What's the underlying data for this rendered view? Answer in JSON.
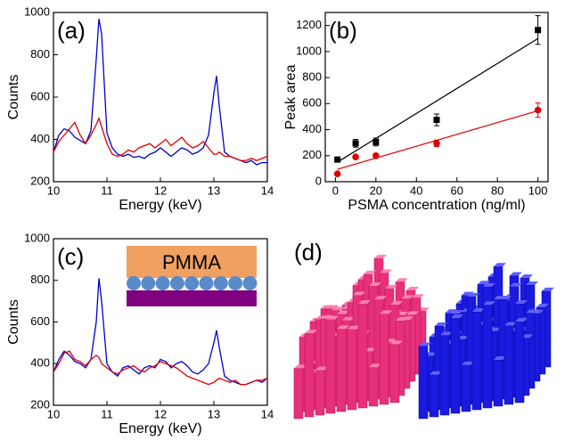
{
  "chart_data": [
    {
      "type": "line",
      "panel_label": "(a)",
      "x_label": "Energy (keV)",
      "y_label": "Counts",
      "xlim": [
        10,
        14
      ],
      "xticks": [
        10,
        11,
        12,
        13,
        14
      ],
      "ylim": [
        200,
        1000
      ],
      "yticks": [
        200,
        400,
        600,
        800,
        1000
      ],
      "x": [
        10,
        10.1,
        10.2,
        10.3,
        10.4,
        10.5,
        10.6,
        10.7,
        10.8,
        10.85,
        10.9,
        11.0,
        11.1,
        11.2,
        11.3,
        11.4,
        11.5,
        11.6,
        11.7,
        11.8,
        11.9,
        12.0,
        12.1,
        12.2,
        12.3,
        12.4,
        12.5,
        12.6,
        12.7,
        12.8,
        12.9,
        13.0,
        13.05,
        13.1,
        13.2,
        13.3,
        13.4,
        13.5,
        13.6,
        13.7,
        13.8,
        13.9,
        14.0
      ],
      "series": [
        {
          "color": "#0000cc",
          "values": [
            340,
            420,
            450,
            440,
            410,
            395,
            380,
            440,
            780,
            970,
            900,
            430,
            360,
            330,
            320,
            330,
            315,
            320,
            310,
            330,
            340,
            360,
            340,
            320,
            340,
            360,
            350,
            330,
            340,
            360,
            420,
            620,
            700,
            560,
            340,
            320,
            310,
            300,
            290,
            300,
            280,
            290,
            290
          ]
        },
        {
          "color": "#dd0000",
          "values": [
            340,
            390,
            420,
            450,
            480,
            420,
            380,
            420,
            470,
            500,
            460,
            380,
            330,
            320,
            330,
            350,
            340,
            360,
            370,
            380,
            360,
            380,
            400,
            370,
            390,
            410,
            380,
            360,
            370,
            390,
            360,
            330,
            330,
            340,
            320,
            320,
            310,
            300,
            300,
            310,
            300,
            310,
            320
          ]
        }
      ]
    },
    {
      "type": "scatter",
      "panel_label": "(b)",
      "x_label": "PSMA concentration (ng/ml)",
      "y_label": "Peak area",
      "xlim": [
        -5,
        105
      ],
      "xticks": [
        0,
        20,
        40,
        60,
        80,
        100
      ],
      "ylim": [
        0,
        1300
      ],
      "yticks": [
        0,
        200,
        400,
        600,
        800,
        1000,
        1200
      ],
      "x": [
        1,
        10,
        20,
        50,
        100
      ],
      "series": [
        {
          "color": "#000000",
          "marker": "square",
          "values": [
            170,
            295,
            305,
            475,
            1165
          ],
          "errors": [
            15,
            30,
            30,
            45,
            110
          ]
        },
        {
          "color": "#dd0000",
          "marker": "circle",
          "values": [
            60,
            190,
            200,
            295,
            550
          ],
          "errors": [
            10,
            15,
            15,
            25,
            55
          ]
        }
      ],
      "fits": [
        {
          "color": "#000000",
          "x": [
            1,
            100
          ],
          "values": [
            150,
            1100
          ]
        },
        {
          "color": "#dd0000",
          "x": [
            1,
            100
          ],
          "values": [
            95,
            545
          ]
        }
      ]
    },
    {
      "type": "line",
      "panel_label": "(c)",
      "inset_label": "PMMA",
      "x_label": "Energy (keV)",
      "y_label": "Counts",
      "xlim": [
        10,
        14
      ],
      "xticks": [
        10,
        11,
        12,
        13,
        14
      ],
      "ylim": [
        200,
        1000
      ],
      "yticks": [
        200,
        400,
        600,
        800,
        1000
      ],
      "x": [
        10,
        10.1,
        10.2,
        10.3,
        10.4,
        10.5,
        10.6,
        10.7,
        10.8,
        10.85,
        10.9,
        11.0,
        11.1,
        11.2,
        11.3,
        11.4,
        11.5,
        11.6,
        11.7,
        11.8,
        11.9,
        12.0,
        12.1,
        12.2,
        12.3,
        12.4,
        12.5,
        12.6,
        12.7,
        12.8,
        12.9,
        13.0,
        13.05,
        13.1,
        13.2,
        13.3,
        13.4,
        13.5,
        13.6,
        13.7,
        13.8,
        13.9,
        14.0
      ],
      "series": [
        {
          "color": "#0000cc",
          "values": [
            360,
            420,
            460,
            440,
            410,
            400,
            380,
            420,
            600,
            810,
            700,
            400,
            360,
            340,
            380,
            390,
            370,
            350,
            380,
            390,
            380,
            420,
            410,
            380,
            400,
            410,
            390,
            360,
            350,
            370,
            400,
            500,
            560,
            480,
            340,
            320,
            310,
            300,
            300,
            310,
            320,
            310,
            330
          ]
        },
        {
          "color": "#dd0000",
          "values": [
            360,
            400,
            450,
            460,
            420,
            410,
            390,
            420,
            440,
            430,
            400,
            380,
            360,
            350,
            370,
            380,
            390,
            370,
            360,
            380,
            390,
            410,
            400,
            390,
            380,
            360,
            340,
            330,
            320,
            310,
            300,
            310,
            320,
            330,
            320,
            310,
            320,
            300,
            300,
            310,
            320,
            320,
            330
          ]
        }
      ]
    }
  ],
  "panel_d": {
    "label": "(d)"
  }
}
